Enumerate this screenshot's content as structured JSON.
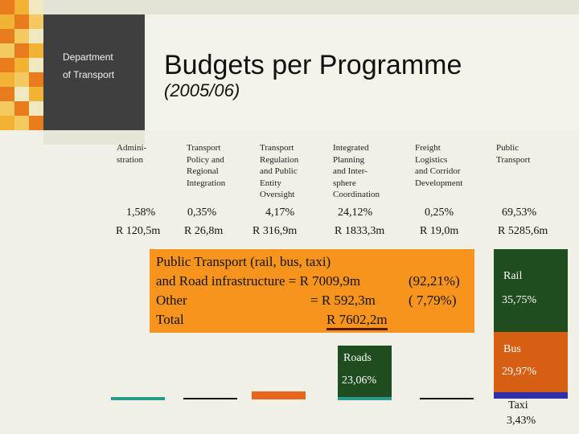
{
  "header": {
    "dept_line1": "Department",
    "dept_line2": "of Transport",
    "title": "Budgets per Programme",
    "subtitle": "(2005/06)"
  },
  "programmes": [
    {
      "label": "Admini-\nstration",
      "pct": "1,58%",
      "amount": "R 120,5m"
    },
    {
      "label": "Transport\nPolicy and\nRegional\nIntegration",
      "pct": "0,35%",
      "amount": "R 26,8m"
    },
    {
      "label": "Transport\nRegulation\nand Public\nEntity\nOversight",
      "pct": "4,17%",
      "amount": "R 316,9m"
    },
    {
      "label": "Integrated\nPlanning\nand Inter-\nsphere\nCoordination",
      "pct": "24,12%",
      "amount": "R 1833,3m"
    },
    {
      "label": "Freight\nLogistics\nand Corridor\nDevelopment",
      "pct": "0,25%",
      "amount": "R 19,0m"
    },
    {
      "label": "Public\nTransport",
      "pct": "69,53%",
      "amount": "R 5285,6m"
    }
  ],
  "summary": {
    "line1": "Public Transport (rail, bus, taxi)",
    "line2_label": "and Road infrastructure = R 7009,9m",
    "line2_pct": "(92,21%)",
    "line3_label": "Other",
    "line3_value": "= R   592,3m",
    "line3_pct": "( 7,79%)",
    "line4_label": "Total",
    "line4_value": "R  7602,2m"
  },
  "breakdown": {
    "rail_label": "Rail",
    "rail_pct": "35,75%",
    "bus_label": "Bus",
    "bus_pct": "29,97%",
    "taxi_label": "Taxi",
    "taxi_pct": "3,43%",
    "roads_label": "Roads",
    "roads_pct": "23,06%"
  },
  "colors": {
    "orange": "#f7941d",
    "dark_green": "#1f4d1f",
    "rust": "#d65f14",
    "navy": "#2f2fa8",
    "teal": "#2a9a8c",
    "dark_gray": "#3f3f3f"
  }
}
